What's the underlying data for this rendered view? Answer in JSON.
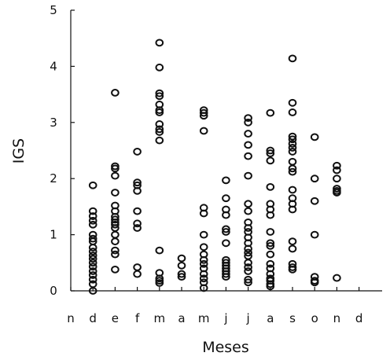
{
  "chart_data": {
    "type": "scatter",
    "xlabel": "Meses",
    "ylabel": "IGS",
    "ylim": [
      0,
      5
    ],
    "yticks": [
      "0",
      "1",
      "2",
      "3",
      "4",
      "5"
    ],
    "categories": [
      "n",
      "d",
      "e",
      "f",
      "m",
      "a",
      "m",
      "j",
      "j",
      "a",
      "s",
      "o",
      "n",
      "d"
    ],
    "grid": false,
    "legend": "none",
    "marker_color": "#111111",
    "series": [
      {
        "points": [
          [
            1,
            1.88
          ],
          [
            1,
            1.42
          ],
          [
            1,
            1.33
          ],
          [
            1,
            1.25
          ],
          [
            1,
            1.18
          ],
          [
            1,
            1.0
          ],
          [
            1,
            0.93
          ],
          [
            1,
            0.88
          ],
          [
            1,
            0.77
          ],
          [
            1,
            0.7
          ],
          [
            1,
            0.63
          ],
          [
            1,
            0.57
          ],
          [
            1,
            0.5
          ],
          [
            1,
            0.43
          ],
          [
            1,
            0.35
          ],
          [
            1,
            0.28
          ],
          [
            1,
            0.2
          ],
          [
            1,
            0.12
          ],
          [
            1,
            0.0
          ],
          [
            2,
            3.53
          ],
          [
            2,
            2.22
          ],
          [
            2,
            2.18
          ],
          [
            2,
            2.05
          ],
          [
            2,
            1.75
          ],
          [
            2,
            1.52
          ],
          [
            2,
            1.42
          ],
          [
            2,
            1.32
          ],
          [
            2,
            1.27
          ],
          [
            2,
            1.22
          ],
          [
            2,
            1.18
          ],
          [
            2,
            1.12
          ],
          [
            2,
            1.0
          ],
          [
            2,
            0.88
          ],
          [
            2,
            0.72
          ],
          [
            2,
            0.65
          ],
          [
            2,
            0.38
          ],
          [
            3,
            2.48
          ],
          [
            3,
            1.93
          ],
          [
            3,
            1.88
          ],
          [
            3,
            1.78
          ],
          [
            3,
            1.42
          ],
          [
            3,
            1.2
          ],
          [
            3,
            1.12
          ],
          [
            3,
            0.42
          ],
          [
            3,
            0.3
          ],
          [
            4,
            4.42
          ],
          [
            4,
            3.98
          ],
          [
            4,
            3.52
          ],
          [
            4,
            3.47
          ],
          [
            4,
            3.32
          ],
          [
            4,
            3.22
          ],
          [
            4,
            3.18
          ],
          [
            4,
            2.97
          ],
          [
            4,
            2.88
          ],
          [
            4,
            2.83
          ],
          [
            4,
            2.68
          ],
          [
            4,
            0.72
          ],
          [
            4,
            0.32
          ],
          [
            4,
            0.22
          ],
          [
            4,
            0.18
          ],
          [
            4,
            0.14
          ],
          [
            5,
            0.58
          ],
          [
            5,
            0.45
          ],
          [
            5,
            0.3
          ],
          [
            5,
            0.25
          ],
          [
            6,
            3.22
          ],
          [
            6,
            3.17
          ],
          [
            6,
            3.12
          ],
          [
            6,
            2.85
          ],
          [
            6,
            1.48
          ],
          [
            6,
            1.38
          ],
          [
            6,
            1.0
          ],
          [
            6,
            0.78
          ],
          [
            6,
            0.65
          ],
          [
            6,
            0.55
          ],
          [
            6,
            0.48
          ],
          [
            6,
            0.4
          ],
          [
            6,
            0.3
          ],
          [
            6,
            0.22
          ],
          [
            6,
            0.15
          ],
          [
            6,
            0.05
          ],
          [
            7,
            1.97
          ],
          [
            7,
            1.65
          ],
          [
            7,
            1.45
          ],
          [
            7,
            1.35
          ],
          [
            7,
            1.1
          ],
          [
            7,
            1.05
          ],
          [
            7,
            0.85
          ],
          [
            7,
            0.55
          ],
          [
            7,
            0.5
          ],
          [
            7,
            0.45
          ],
          [
            7,
            0.4
          ],
          [
            7,
            0.35
          ],
          [
            7,
            0.3
          ],
          [
            7,
            0.25
          ],
          [
            8,
            3.08
          ],
          [
            8,
            3.0
          ],
          [
            8,
            2.8
          ],
          [
            8,
            2.6
          ],
          [
            8,
            2.4
          ],
          [
            8,
            2.05
          ],
          [
            8,
            1.55
          ],
          [
            8,
            1.42
          ],
          [
            8,
            1.22
          ],
          [
            8,
            1.12
          ],
          [
            8,
            1.05
          ],
          [
            8,
            0.95
          ],
          [
            8,
            0.85
          ],
          [
            8,
            0.75
          ],
          [
            8,
            0.68
          ],
          [
            8,
            0.62
          ],
          [
            8,
            0.5
          ],
          [
            8,
            0.42
          ],
          [
            8,
            0.35
          ],
          [
            8,
            0.2
          ],
          [
            8,
            0.15
          ],
          [
            9,
            3.17
          ],
          [
            9,
            2.5
          ],
          [
            9,
            2.45
          ],
          [
            9,
            2.32
          ],
          [
            9,
            1.85
          ],
          [
            9,
            1.55
          ],
          [
            9,
            1.45
          ],
          [
            9,
            1.35
          ],
          [
            9,
            1.05
          ],
          [
            9,
            0.85
          ],
          [
            9,
            0.8
          ],
          [
            9,
            0.65
          ],
          [
            9,
            0.48
          ],
          [
            9,
            0.4
          ],
          [
            9,
            0.3
          ],
          [
            9,
            0.22
          ],
          [
            9,
            0.18
          ],
          [
            9,
            0.12
          ],
          [
            9,
            0.08
          ],
          [
            10,
            4.14
          ],
          [
            10,
            3.35
          ],
          [
            10,
            3.18
          ],
          [
            10,
            2.75
          ],
          [
            10,
            2.7
          ],
          [
            10,
            2.62
          ],
          [
            10,
            2.55
          ],
          [
            10,
            2.48
          ],
          [
            10,
            2.3
          ],
          [
            10,
            2.18
          ],
          [
            10,
            2.12
          ],
          [
            10,
            1.8
          ],
          [
            10,
            1.65
          ],
          [
            10,
            1.55
          ],
          [
            10,
            1.45
          ],
          [
            10,
            0.88
          ],
          [
            10,
            0.75
          ],
          [
            10,
            0.48
          ],
          [
            10,
            0.42
          ],
          [
            10,
            0.38
          ],
          [
            11,
            2.74
          ],
          [
            11,
            2.0
          ],
          [
            11,
            1.6
          ],
          [
            11,
            1.0
          ],
          [
            11,
            0.25
          ],
          [
            11,
            0.18
          ],
          [
            11,
            0.15
          ],
          [
            12,
            2.23
          ],
          [
            12,
            2.15
          ],
          [
            12,
            2.0
          ],
          [
            12,
            1.82
          ],
          [
            12,
            1.78
          ],
          [
            12,
            1.75
          ],
          [
            12,
            0.23
          ]
        ]
      }
    ]
  }
}
